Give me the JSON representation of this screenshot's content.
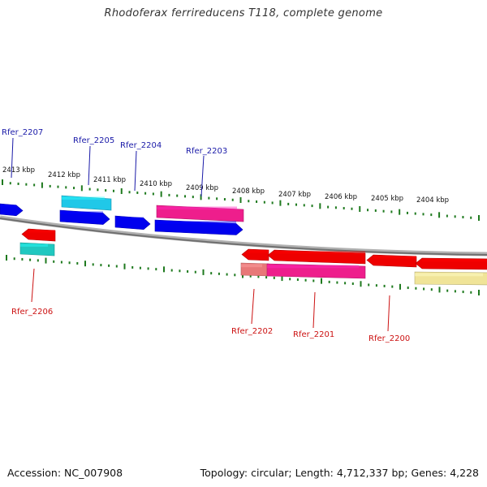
{
  "title": "Rhodoferax ferrireducens T118, complete genome",
  "footer": {
    "accession": "Accession: NC_007908",
    "topology": "Topology: circular; Length: 4,712,337 bp; Genes: 4,228"
  },
  "colors": {
    "backbone": "#8c8c8c",
    "tick": "#1f7a1f",
    "label_top": "#1a1aa8",
    "label_bottom": "#cc1111",
    "gene_blue": "#0000ee",
    "gene_cyan": "#20c8e8",
    "gene_magenta": "#ee1e8c",
    "gene_red": "#ee0000",
    "gene_teal": "#20c8c0",
    "gene_pink": "#e87878",
    "gene_yellow": "#f0e498"
  },
  "kbp_labels": [
    "2413 kbp",
    "2412 kbp",
    "2411 kbp",
    "2410 kbp",
    "2409 kbp",
    "2408 kbp",
    "2407 kbp",
    "2406 kbp",
    "2405 kbp",
    "2404 kbp"
  ],
  "gene_labels_top": [
    "Rfer_2207",
    "Rfer_2205",
    "Rfer_2204",
    "Rfer_2203"
  ],
  "gene_labels_bottom": [
    "Rfer_2206",
    "Rfer_2202",
    "Rfer_2201",
    "Rfer_2200"
  ]
}
